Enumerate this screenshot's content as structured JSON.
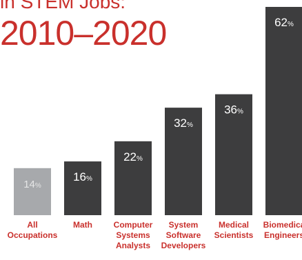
{
  "header": {
    "title_line1": "in STEM Jobs:",
    "title_line2": "2010–2020"
  },
  "chart_data": {
    "type": "bar",
    "categories": [
      [
        "All",
        "Occupations"
      ],
      [
        "Math"
      ],
      [
        "Computer",
        "Systems",
        "Analysts"
      ],
      [
        "System",
        "Software",
        "Developers"
      ],
      [
        "Medical",
        "Scientists"
      ],
      [
        "Biomedica",
        "Engineers"
      ]
    ],
    "values": [
      14,
      16,
      22,
      32,
      36,
      62
    ],
    "value_labels": [
      "14",
      "16",
      "22",
      "32",
      "36",
      "62"
    ],
    "value_suffix": "%",
    "bar_colors": [
      "#a7a9ac",
      "#3d3d3e",
      "#3d3d3e",
      "#3d3d3e",
      "#3d3d3e",
      "#3d3d3e"
    ],
    "label_color": "#c9302c"
  }
}
